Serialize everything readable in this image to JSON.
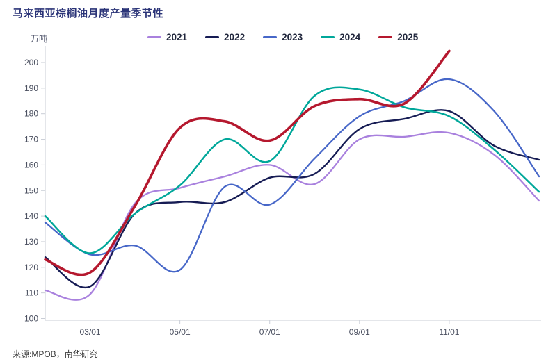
{
  "header": {
    "title": "马来西亚棕榈油月度产量季节性"
  },
  "unit_label": "万吨",
  "footer": {
    "source": "来源:MPOB，南华研究"
  },
  "chart_data": {
    "type": "line",
    "title": "马来西亚棕榈油月度产量季节性",
    "ylabel": "万吨",
    "xlabel": "",
    "grid": false,
    "legend_position": "top-center",
    "ylim": [
      100,
      205
    ],
    "y_ticks": [
      100,
      110,
      120,
      130,
      140,
      150,
      160,
      170,
      180,
      190,
      200
    ],
    "x_months": [
      "01",
      "02",
      "03",
      "04",
      "05",
      "06",
      "07",
      "08",
      "09",
      "10",
      "11",
      "12"
    ],
    "x_tick_labels": [
      "03/01",
      "05/01",
      "07/01",
      "09/01",
      "11/01"
    ],
    "x_tick_month_index": [
      1,
      3,
      5,
      7,
      9
    ],
    "series": [
      {
        "name": "2021",
        "color": "#a981de",
        "width": 2.3,
        "values": [
          111,
          109.5,
          145,
          151,
          155.5,
          160,
          152.5,
          170,
          171,
          172.5,
          164,
          146
        ]
      },
      {
        "name": "2022",
        "color": "#161c54",
        "width": 2.4,
        "values": [
          124,
          112.5,
          141,
          145.5,
          145.5,
          155,
          156.5,
          174,
          178,
          181,
          167.5,
          162
        ]
      },
      {
        "name": "2023",
        "color": "#4767c8",
        "width": 2.3,
        "values": [
          137.5,
          125,
          128.5,
          119,
          151.5,
          144.5,
          162.5,
          179,
          185,
          193.5,
          181,
          155.5
        ]
      },
      {
        "name": "2024",
        "color": "#00a79a",
        "width": 2.5,
        "values": [
          140,
          125.5,
          141,
          152,
          170,
          161.5,
          187,
          189.5,
          182.5,
          179,
          166,
          149.5
        ]
      },
      {
        "name": "2025",
        "color": "#b5182e",
        "width": 3.6,
        "values": [
          123,
          118,
          144,
          174.5,
          177,
          169.5,
          183,
          185.7,
          184,
          204.5
        ]
      }
    ]
  }
}
